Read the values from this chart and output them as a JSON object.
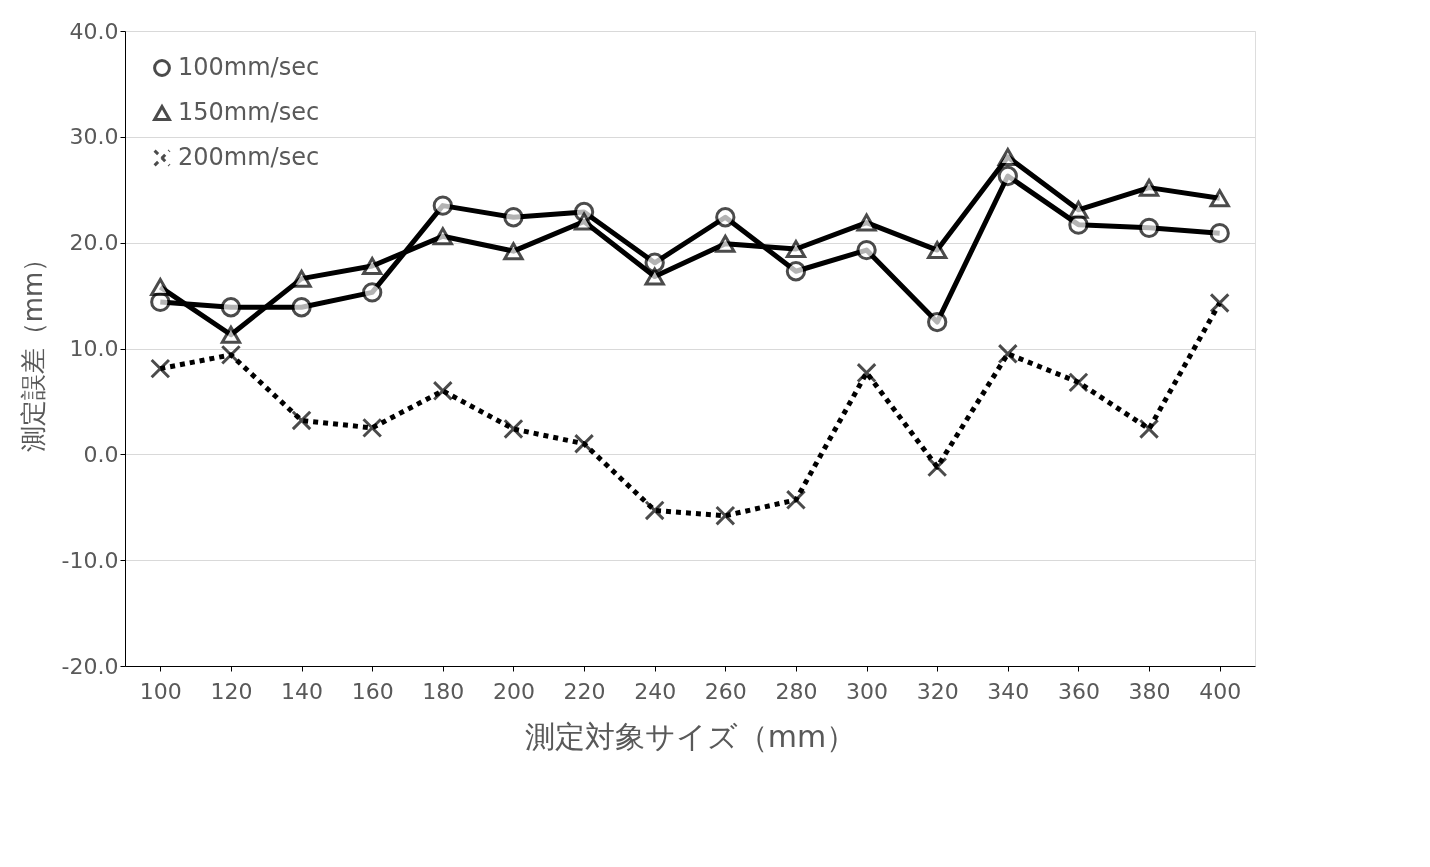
{
  "chart_data": {
    "type": "line",
    "xlabel": "測定対象サイズ（mm）",
    "ylabel": "測定誤差（mm）",
    "categories": [
      "100",
      "120",
      "140",
      "160",
      "180",
      "200",
      "220",
      "240",
      "260",
      "280",
      "300",
      "320",
      "340",
      "360",
      "380",
      "400"
    ],
    "series": [
      {
        "name": "100mm/sec",
        "color": "#000000",
        "marker": "circle",
        "line_style": "solid",
        "values": [
          14.4,
          13.9,
          13.9,
          15.3,
          23.5,
          22.4,
          22.9,
          18.1,
          22.4,
          17.3,
          19.3,
          12.5,
          26.3,
          21.7,
          21.4,
          20.9
        ]
      },
      {
        "name": "150mm/sec",
        "color": "#000000",
        "marker": "triangle",
        "line_style": "solid",
        "values": [
          15.8,
          11.3,
          16.6,
          17.8,
          20.6,
          19.2,
          22.0,
          16.8,
          19.9,
          19.4,
          21.9,
          19.3,
          28.1,
          23.1,
          25.2,
          24.2
        ]
      },
      {
        "name": "200mm/sec",
        "color": "#000000",
        "marker": "cross",
        "line_style": "dotted",
        "values": [
          8.1,
          9.4,
          3.2,
          2.5,
          6.0,
          2.4,
          1.0,
          -5.3,
          -5.8,
          -4.3,
          7.7,
          -1.2,
          9.5,
          6.8,
          2.4,
          14.3
        ]
      }
    ],
    "ylim": [
      -20,
      40
    ],
    "yticks": [
      {
        "value": -20,
        "label": "-20.0"
      },
      {
        "value": -10,
        "label": "-10.0"
      },
      {
        "value": 0,
        "label": "0.0"
      },
      {
        "value": 10,
        "label": "10.0"
      },
      {
        "value": 20,
        "label": "20.0"
      },
      {
        "value": 30,
        "label": "30.0"
      },
      {
        "value": 40,
        "label": "40.0"
      }
    ],
    "grid": "y",
    "legend": "top left"
  }
}
